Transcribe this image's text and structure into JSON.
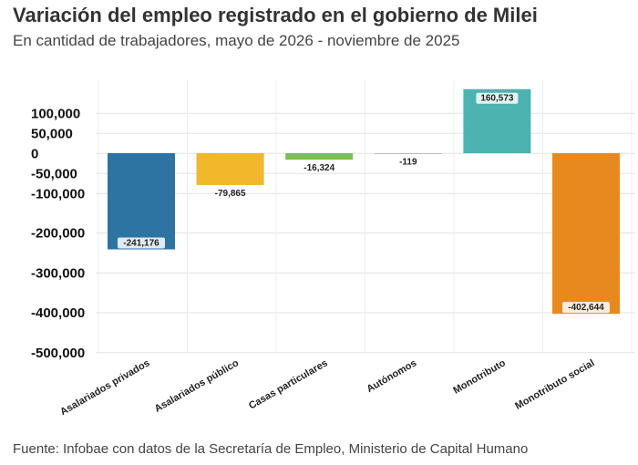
{
  "header": {
    "title": "Variación del empleo registrado en el gobierno de Milei",
    "subtitle": "En cantidad de trabajadores, mayo de 2026 - noviembre de 2025"
  },
  "footer": {
    "source": "Fuente: Infobae con datos de la Secretaría de Empleo, Ministerio de Capital Humano"
  },
  "chart_data": {
    "type": "bar",
    "title": "Variación del empleo registrado en el gobierno de Milei",
    "subtitle": "En cantidad de trabajadores, mayo de 2026 - noviembre de 2025",
    "xlabel": "",
    "ylabel": "",
    "categories": [
      "Asalariados privados",
      "Asalariados público",
      "Casas particulares",
      "Autónomos",
      "Monotributo",
      "Monotributo social"
    ],
    "values": [
      -241176,
      -79865,
      -16324,
      -119,
      160573,
      -402644
    ],
    "value_labels": [
      "-241,176",
      "-79,865",
      "-16,324",
      "-119",
      "160,573",
      "-402,644"
    ],
    "colors": [
      "#2e74a2",
      "#f0b82a",
      "#7cbd5a",
      "#999999",
      "#4db3b0",
      "#e8891f"
    ],
    "ylim": [
      -500000,
      160573
    ],
    "yticks": [
      100000,
      50000,
      0,
      -50000,
      -100000,
      -200000,
      -300000,
      -400000,
      -500000
    ],
    "ytick_labels": [
      "100,000",
      "50,000",
      "0",
      "-50,000",
      "-100,000",
      "-200,000",
      "-300,000",
      "-400,000",
      "-500,000"
    ],
    "grid": true,
    "legend": "none"
  }
}
